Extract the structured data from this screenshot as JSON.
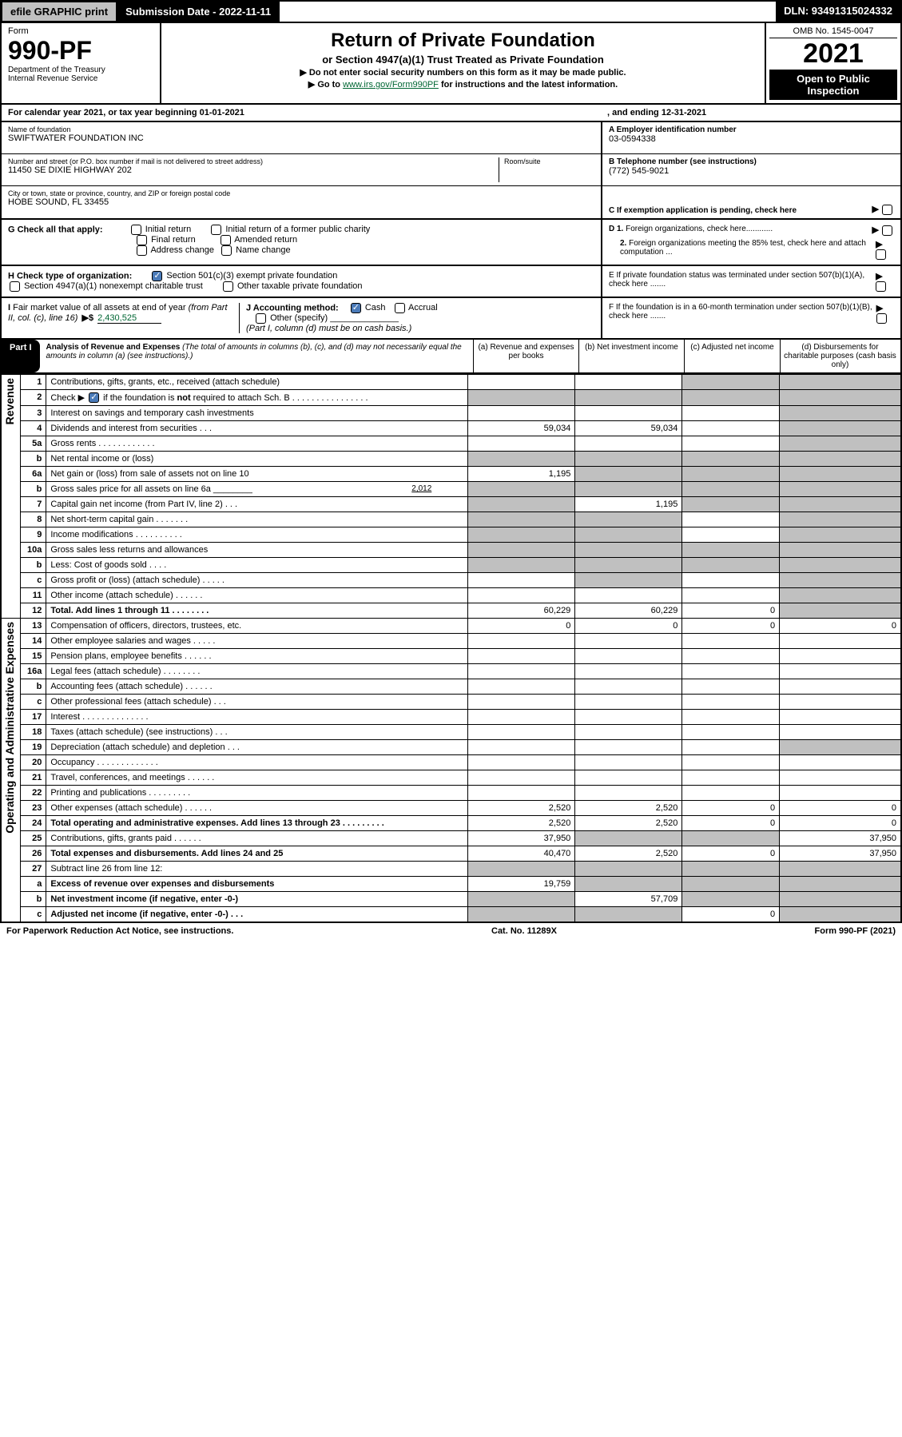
{
  "topbar": {
    "efile": "efile GRAPHIC print",
    "submission": "Submission Date - 2022-11-11",
    "dln": "DLN: 93491315024332"
  },
  "header": {
    "form_label": "Form",
    "form_no": "990-PF",
    "dept": "Department of the Treasury",
    "irs": "Internal Revenue Service",
    "title": "Return of Private Foundation",
    "subtitle": "or Section 4947(a)(1) Trust Treated as Private Foundation",
    "instr1": "▶ Do not enter social security numbers on this form as it may be made public.",
    "instr2_pre": "▶ Go to ",
    "instr2_link": "www.irs.gov/Form990PF",
    "instr2_post": " for instructions and the latest information.",
    "omb": "OMB No. 1545-0047",
    "year": "2021",
    "open": "Open to Public Inspection"
  },
  "cal": {
    "text": "For calendar year 2021, or tax year beginning 01-01-2021",
    "ending": ", and ending 12-31-2021"
  },
  "info": {
    "name_lbl": "Name of foundation",
    "name": "SWIFTWATER FOUNDATION INC",
    "addr_lbl": "Number and street (or P.O. box number if mail is not delivered to street address)",
    "addr": "11450 SE DIXIE HIGHWAY 202",
    "room_lbl": "Room/suite",
    "city_lbl": "City or town, state or province, country, and ZIP or foreign postal code",
    "city": "HOBE SOUND, FL  33455",
    "a_lbl": "A Employer identification number",
    "ein": "03-0594338",
    "b_lbl": "B Telephone number (see instructions)",
    "phone": "(772) 545-9021",
    "c_lbl": "C If exemption application is pending, check here"
  },
  "checks": {
    "g_lbl": "G Check all that apply:",
    "g1": "Initial return",
    "g2": "Initial return of a former public charity",
    "g3": "Final return",
    "g4": "Amended return",
    "g5": "Address change",
    "g6": "Name change",
    "h_lbl": "H Check type of organization:",
    "h1": "Section 501(c)(3) exempt private foundation",
    "h2": "Section 4947(a)(1) nonexempt charitable trust",
    "h3": "Other taxable private foundation",
    "i_lbl": "I Fair market value of all assets at end of year (from Part II, col. (c), line 16)",
    "i_arrow": "▶$",
    "i_val": "2,430,525",
    "j_lbl": "J Accounting method:",
    "j1": "Cash",
    "j2": "Accrual",
    "j3": "Other (specify)",
    "j_note": "(Part I, column (d) must be on cash basis.)",
    "d1": "D 1. Foreign organizations, check here............",
    "d2": "2. Foreign organizations meeting the 85% test, check here and attach computation ...",
    "e": "E  If private foundation status was terminated under section 507(b)(1)(A), check here .......",
    "f": "F  If the foundation is in a 60-month termination under section 507(b)(1)(B), check here .......",
    "i_text": "line 16)"
  },
  "part1": {
    "hdr": "Part I",
    "title": "Analysis of Revenue and Expenses",
    "note": "(The total of amounts in columns (b), (c), and (d) may not necessarily equal the amounts in column (a) (see instructions).)",
    "ca": "(a)   Revenue and expenses per books",
    "cb": "(b)   Net investment income",
    "cc": "(c)   Adjusted net income",
    "cd": "(d)  Disbursements for charitable purposes (cash basis only)"
  },
  "side": {
    "rev": "Revenue",
    "exp": "Operating and Administrative Expenses"
  },
  "rows": [
    {
      "n": "1",
      "l": "Contributions, gifts, grants, etc., received (attach schedule)",
      "a": "",
      "b": "",
      "c": "g",
      "d": "g"
    },
    {
      "n": "2",
      "l": "Check ▶ ☑ if the foundation is not required to attach Sch. B     .    .    .    .    .    .    .    .    .    .    .    .    .    .    .    .",
      "a": "g",
      "b": "g",
      "c": "g",
      "d": "g"
    },
    {
      "n": "3",
      "l": "Interest on savings and temporary cash investments",
      "a": "",
      "b": "",
      "c": "",
      "d": "g"
    },
    {
      "n": "4",
      "l": "Dividends and interest from securities    .    .    .",
      "a": "59,034",
      "b": "59,034",
      "c": "",
      "d": "g"
    },
    {
      "n": "5a",
      "l": "Gross rents    .    .    .    .    .    .    .    .    .    .    .    .",
      "a": "",
      "b": "",
      "c": "",
      "d": "g"
    },
    {
      "n": "b",
      "l": "Net rental income or (loss)  ",
      "a": "g",
      "b": "g",
      "c": "g",
      "d": "g"
    },
    {
      "n": "6a",
      "l": "Net gain or (loss) from sale of assets not on line 10",
      "a": "1,195",
      "b": "g",
      "c": "g",
      "d": "g"
    },
    {
      "n": "b",
      "l": "Gross sales price for all assets on line 6a ________",
      "bv": "2,012",
      "a": "g",
      "b": "g",
      "c": "g",
      "d": "g"
    },
    {
      "n": "7",
      "l": "Capital gain net income (from Part IV, line 2)    .    .    .",
      "a": "g",
      "b": "1,195",
      "c": "g",
      "d": "g"
    },
    {
      "n": "8",
      "l": "Net short-term capital gain    .    .    .    .    .    .    .",
      "a": "g",
      "b": "g",
      "c": "",
      "d": "g"
    },
    {
      "n": "9",
      "l": "Income modifications .    .    .    .    .    .    .    .    .    .",
      "a": "g",
      "b": "g",
      "c": "",
      "d": "g"
    },
    {
      "n": "10a",
      "l": "Gross sales less returns and allowances",
      "a": "g",
      "b": "g",
      "c": "g",
      "d": "g"
    },
    {
      "n": "b",
      "l": "Less: Cost of goods sold    .    .    .    .",
      "a": "g",
      "b": "g",
      "c": "g",
      "d": "g"
    },
    {
      "n": "c",
      "l": "Gross profit or (loss) (attach schedule)    .    .    .    .    .",
      "a": "",
      "b": "g",
      "c": "",
      "d": "g"
    },
    {
      "n": "11",
      "l": "Other income (attach schedule)    .    .    .    .    .    .",
      "a": "",
      "b": "",
      "c": "",
      "d": "g"
    },
    {
      "n": "12",
      "l": "Total. Add lines 1 through 11    .    .    .    .    .    .    .    .",
      "bold": true,
      "a": "60,229",
      "b": "60,229",
      "c": "0",
      "d": "g"
    },
    {
      "n": "13",
      "l": "Compensation of officers, directors, trustees, etc.",
      "a": "0",
      "b": "0",
      "c": "0",
      "d": "0"
    },
    {
      "n": "14",
      "l": "Other employee salaries and wages    .    .    .    .    .",
      "a": "",
      "b": "",
      "c": "",
      "d": ""
    },
    {
      "n": "15",
      "l": "Pension plans, employee benefits   .    .    .    .    .    .",
      "a": "",
      "b": "",
      "c": "",
      "d": ""
    },
    {
      "n": "16a",
      "l": "Legal fees (attach schedule) .    .    .    .    .    .    .    .",
      "a": "",
      "b": "",
      "c": "",
      "d": ""
    },
    {
      "n": "b",
      "l": "Accounting fees (attach schedule) .    .    .    .    .    .",
      "a": "",
      "b": "",
      "c": "",
      "d": ""
    },
    {
      "n": "c",
      "l": "Other professional fees (attach schedule)    .    .    .",
      "a": "",
      "b": "",
      "c": "",
      "d": ""
    },
    {
      "n": "17",
      "l": "Interest  .    .    .    .    .    .    .    .    .    .    .    .    .    .",
      "a": "",
      "b": "",
      "c": "",
      "d": ""
    },
    {
      "n": "18",
      "l": "Taxes (attach schedule) (see instructions)    .    .    .",
      "a": "",
      "b": "",
      "c": "",
      "d": ""
    },
    {
      "n": "19",
      "l": "Depreciation (attach schedule) and depletion   .    .    .",
      "a": "",
      "b": "",
      "c": "",
      "d": "g"
    },
    {
      "n": "20",
      "l": "Occupancy .    .    .    .    .    .    .    .    .    .    .    .    .",
      "a": "",
      "b": "",
      "c": "",
      "d": ""
    },
    {
      "n": "21",
      "l": "Travel, conferences, and meetings .    .    .    .    .    .",
      "a": "",
      "b": "",
      "c": "",
      "d": ""
    },
    {
      "n": "22",
      "l": "Printing and publications .    .    .    .    .    .    .    .    .",
      "a": "",
      "b": "",
      "c": "",
      "d": ""
    },
    {
      "n": "23",
      "l": "Other expenses (attach schedule) .    .    .    .    .    .",
      "a": "2,520",
      "b": "2,520",
      "c": "0",
      "d": "0"
    },
    {
      "n": "24",
      "l": "Total operating and administrative expenses. Add lines 13 through 23    .    .    .    .    .    .    .    .    .",
      "bold": true,
      "a": "2,520",
      "b": "2,520",
      "c": "0",
      "d": "0"
    },
    {
      "n": "25",
      "l": "Contributions, gifts, grants paid    .    .    .    .    .    .",
      "a": "37,950",
      "b": "g",
      "c": "g",
      "d": "37,950"
    },
    {
      "n": "26",
      "l": "Total expenses and disbursements. Add lines 24 and 25",
      "bold": true,
      "a": "40,470",
      "b": "2,520",
      "c": "0",
      "d": "37,950"
    },
    {
      "n": "27",
      "l": "Subtract line 26 from line 12:",
      "a": "g",
      "b": "g",
      "c": "g",
      "d": "g"
    },
    {
      "n": "a",
      "l": "Excess of revenue over expenses and disbursements",
      "bold": true,
      "a": "19,759",
      "b": "g",
      "c": "g",
      "d": "g"
    },
    {
      "n": "b",
      "l": "Net investment income (if negative, enter -0-)",
      "bold": true,
      "a": "g",
      "b": "57,709",
      "c": "g",
      "d": "g"
    },
    {
      "n": "c",
      "l": "Adjusted net income (if negative, enter -0-)    .    .    .",
      "bold": true,
      "a": "g",
      "b": "g",
      "c": "0",
      "d": "g"
    }
  ],
  "footer": {
    "pra": "For Paperwork Reduction Act Notice, see instructions.",
    "cat": "Cat. No. 11289X",
    "form": "Form 990-PF (2021)"
  }
}
